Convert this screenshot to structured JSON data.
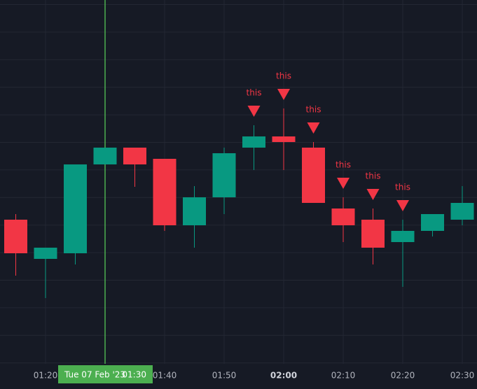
{
  "chart_data": {
    "type": "candlestick",
    "categories": [
      null,
      "01:20",
      null,
      "01:30",
      null,
      "01:40",
      null,
      "01:50",
      null,
      "02:00",
      null,
      "02:10",
      null,
      "02:20",
      null,
      "02:30"
    ],
    "open": [
      206,
      150,
      158,
      285,
      309,
      293,
      198,
      238,
      309,
      325,
      309,
      222,
      206,
      174,
      190,
      206
    ],
    "high": [
      214,
      166,
      285,
      309,
      309,
      293,
      254,
      309,
      341,
      365,
      317,
      238,
      222,
      206,
      214,
      254
    ],
    "low": [
      126,
      94,
      142,
      285,
      253,
      190,
      166,
      214,
      277,
      277,
      230,
      174,
      142,
      110,
      182,
      198
    ],
    "close": [
      158,
      166,
      285,
      309,
      285,
      198,
      238,
      301,
      325,
      317,
      230,
      198,
      166,
      190,
      214,
      230
    ],
    "markers": [
      null,
      null,
      null,
      null,
      null,
      null,
      null,
      null,
      "this",
      "this",
      "this",
      "this",
      "this",
      "this",
      null,
      null
    ],
    "crosshair_date": "Tue 07 Feb '23",
    "up_color": "#089981",
    "down_color": "#f23645",
    "marker_color": "#f23645",
    "ylim": [
      0,
      520
    ],
    "grid": true
  }
}
